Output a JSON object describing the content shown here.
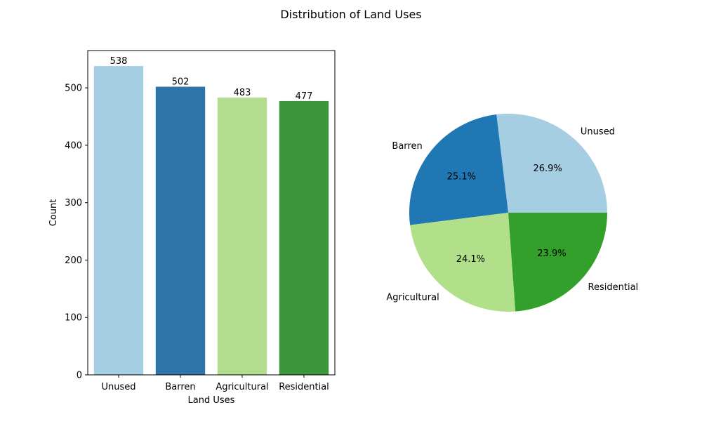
{
  "chart_data": [
    {
      "type": "bar",
      "title": "Distribution of Land Uses",
      "xlabel": "Land Uses",
      "ylabel": "Count",
      "categories": [
        "Unused",
        "Barren",
        "Agricultural",
        "Residential"
      ],
      "values": [
        538,
        502,
        483,
        477
      ],
      "data_labels": [
        "538",
        "502",
        "483",
        "477"
      ],
      "ylim": [
        0,
        565
      ],
      "yticks": [
        0,
        100,
        200,
        300,
        400,
        500
      ],
      "colors": [
        "#a6cee3",
        "#2f74a8",
        "#b2dc8f",
        "#3e963c"
      ],
      "grid": false
    },
    {
      "type": "pie",
      "categories": [
        "Unused",
        "Barren",
        "Agricultural",
        "Residential"
      ],
      "values": [
        538,
        502,
        483,
        477
      ],
      "percent_labels": [
        "26.9%",
        "25.1%",
        "24.1%",
        "23.9%"
      ],
      "colors": [
        "#a6cee3",
        "#1f78b4",
        "#b2df8a",
        "#33a02c"
      ],
      "start_angle_deg": 0,
      "direction": "counterclockwise"
    }
  ]
}
